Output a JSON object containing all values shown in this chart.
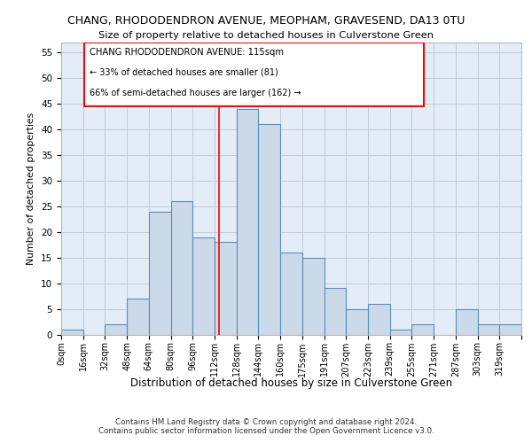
{
  "title": "CHANG, RHODODENDRON AVENUE, MEOPHAM, GRAVESEND, DA13 0TU",
  "subtitle": "Size of property relative to detached houses in Culverstone Green",
  "xlabel": "Distribution of detached houses by size in Culverstone Green",
  "ylabel": "Number of detached properties",
  "footer1": "Contains HM Land Registry data © Crown copyright and database right 2024.",
  "footer2": "Contains public sector information licensed under the Open Government Licence v3.0.",
  "annotation_title": "CHANG RHODODENDRON AVENUE: 115sqm",
  "annotation_line2": "← 33% of detached houses are smaller (81)",
  "annotation_line3": "66% of semi-detached houses are larger (162) →",
  "bin_labels": [
    "0sqm",
    "16sqm",
    "32sqm",
    "48sqm",
    "64sqm",
    "80sqm",
    "96sqm",
    "112sqm",
    "128sqm",
    "144sqm",
    "160sqm",
    "175sqm",
    "191sqm",
    "207sqm",
    "223sqm",
    "239sqm",
    "255sqm",
    "271sqm",
    "287sqm",
    "303sqm",
    "319sqm"
  ],
  "bar_values": [
    1,
    0,
    2,
    7,
    24,
    26,
    19,
    18,
    44,
    41,
    16,
    15,
    9,
    5,
    6,
    1,
    2,
    0,
    5,
    2,
    2
  ],
  "bar_color": "#ccd9e8",
  "bar_edge_color": "#5590c0",
  "grid_color": "#c0ccd8",
  "background_color": "#e4ecf7",
  "vline_x": 115,
  "bin_width": 16,
  "ylim": [
    0,
    57
  ],
  "yticks": [
    0,
    5,
    10,
    15,
    20,
    25,
    30,
    35,
    40,
    45,
    50,
    55
  ]
}
